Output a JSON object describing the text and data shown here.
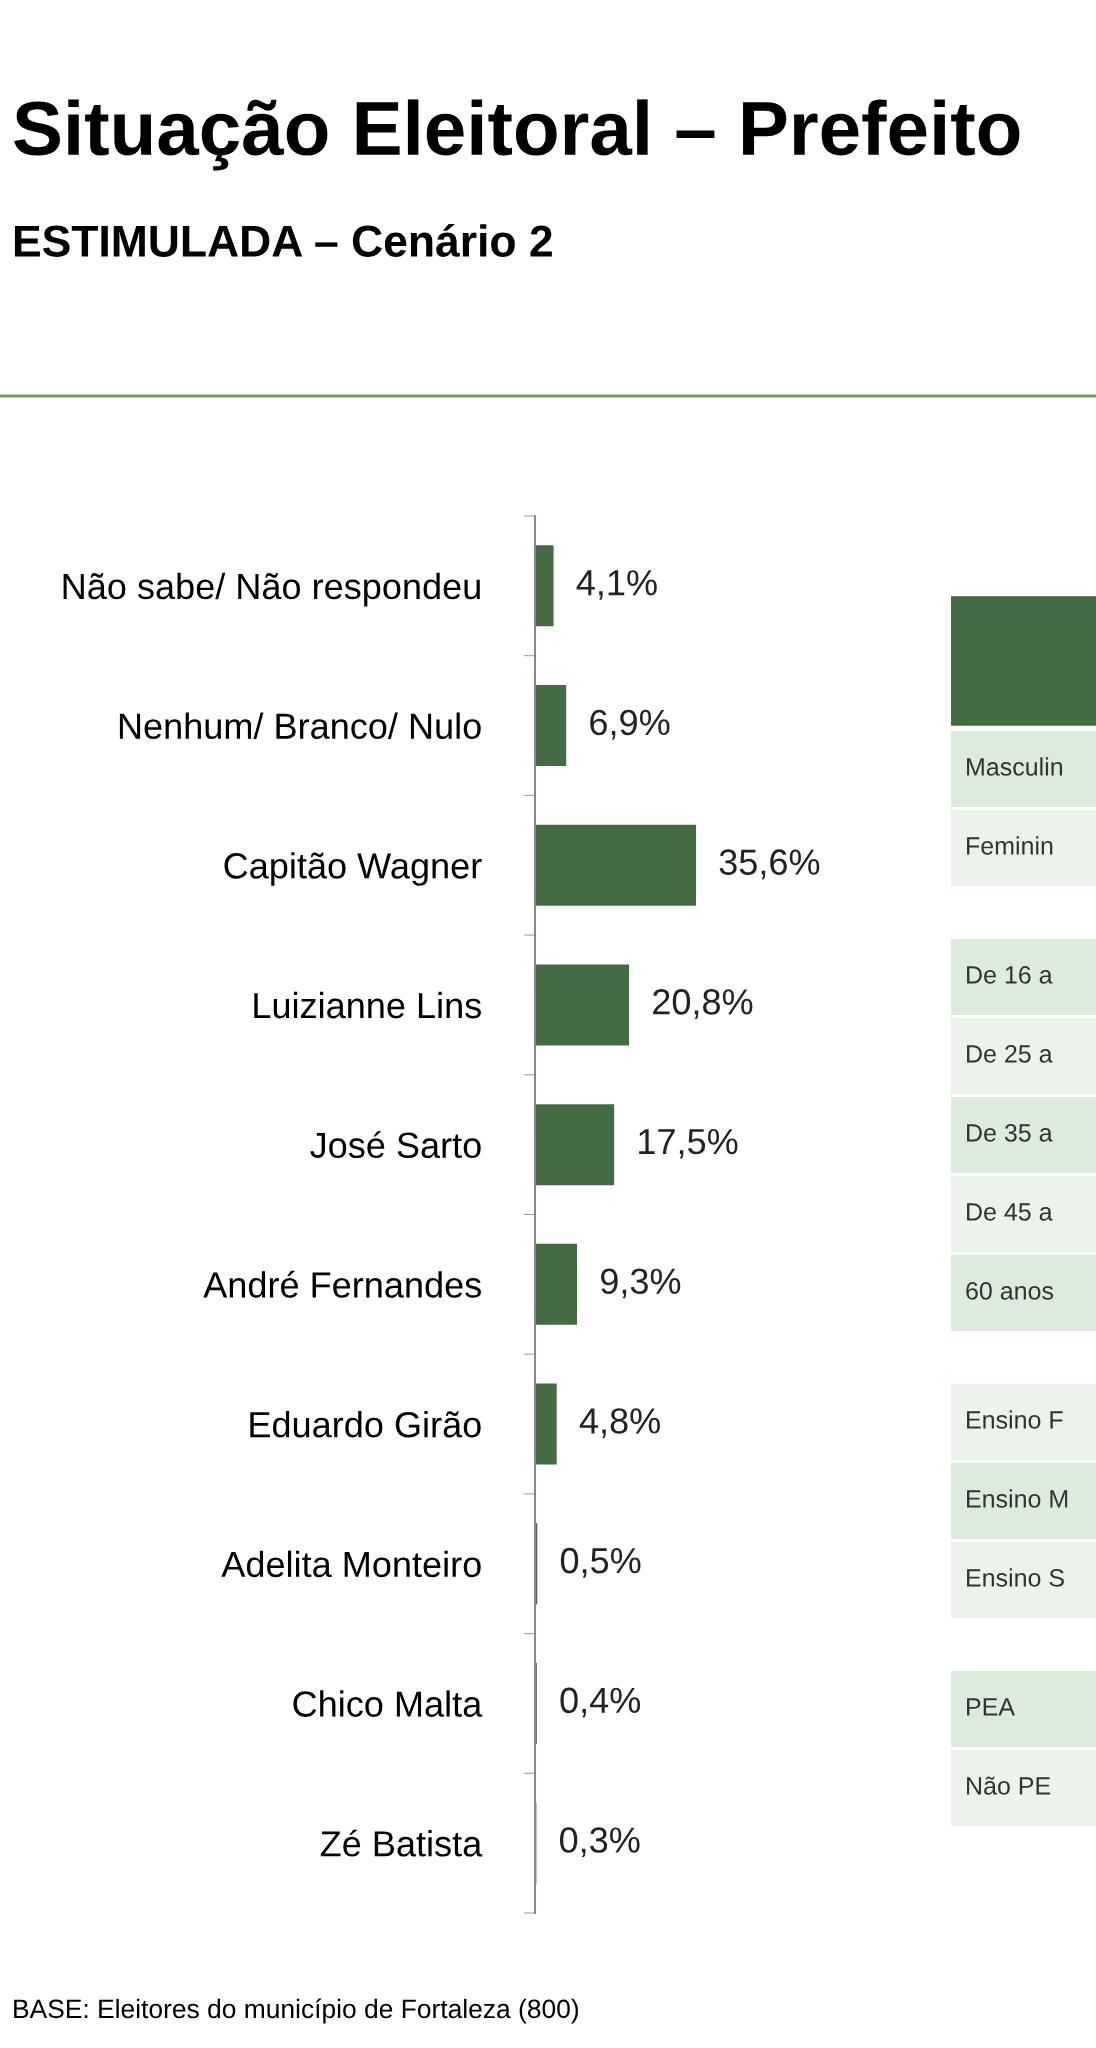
{
  "chart_data": [
    {
      "type": "bar",
      "orientation": "horizontal",
      "title": "Situação Eleitoral – Prefeito",
      "subtitle": "ESTIMULADA – Cenário 2",
      "categories": [
        "Não sabe/ Não respondeu",
        "Nenhum/ Branco/ Nulo",
        "Capitão Wagner",
        "Luizianne Lins",
        "José Sarto",
        "André Fernandes",
        "Eduardo Girão",
        "Adelita Monteiro",
        "Chico Malta",
        "Zé Batista"
      ],
      "values": [
        4.1,
        6.9,
        35.6,
        20.8,
        17.5,
        9.3,
        4.8,
        0.5,
        0.4,
        0.3
      ],
      "value_labels": [
        "4,1%",
        "6,9%",
        "35,6%",
        "20,8%",
        "17,5%",
        "9,3%",
        "4,8%",
        "0,5%",
        "0,4%",
        "0,3%"
      ],
      "color": "#456b42",
      "tick_labels": "y",
      "annotations": [
        "BASE: Eleitores do município de Fortaleza (800)"
      ]
    },
    {
      "type": "other",
      "categories": [
        "Masculin",
        "Feminin",
        null,
        "De 16 a",
        "De 25 a",
        "De 35 a",
        "De 45 a",
        "60 anos",
        null,
        "Ensino F",
        "Ensino M",
        "Ensino S",
        null,
        "PEA",
        "Não PE"
      ]
    }
  ]
}
